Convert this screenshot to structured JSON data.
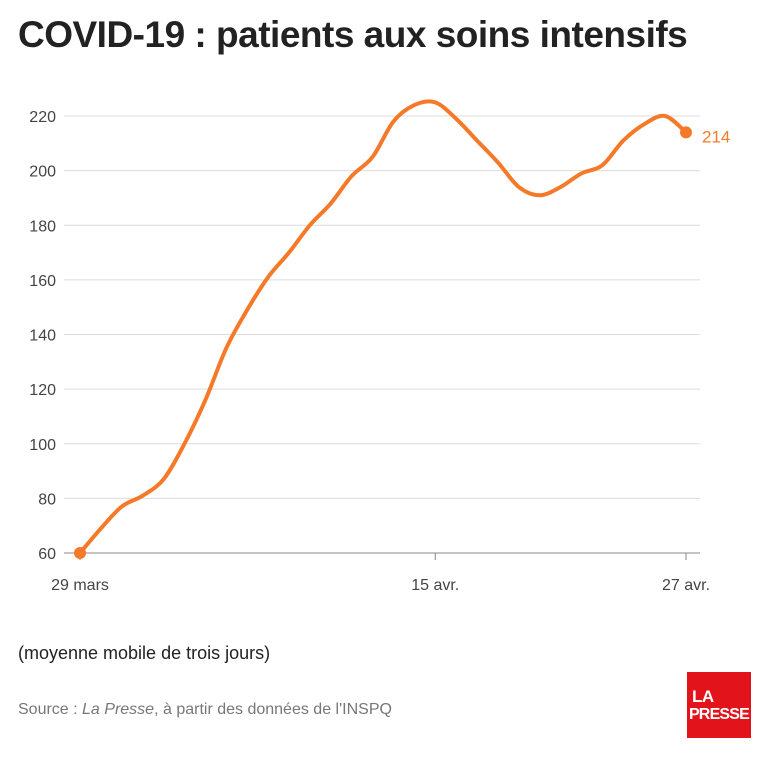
{
  "title": "COVID-19 : patients aux soins intensifs",
  "note": "(moyenne mobile de trois jours)",
  "source": {
    "prefix": "Source : ",
    "publication": "La Presse",
    "suffix": ", à partir des données de l'INSPQ"
  },
  "logo": {
    "line1": "LA",
    "line2": "PRESSE",
    "color": "#e3131b"
  },
  "chart_data": {
    "type": "line",
    "title": "COVID-19 : patients aux soins intensifs",
    "xlabel": "",
    "ylabel": "",
    "ylim": [
      60,
      225
    ],
    "yticks": [
      60,
      80,
      100,
      120,
      140,
      160,
      180,
      200,
      220
    ],
    "xtick_labels": [
      {
        "label": "29 mars",
        "day": 0
      },
      {
        "label": "15 avr.",
        "day": 17
      },
      {
        "label": "27 avr.",
        "day": 29
      }
    ],
    "grid": true,
    "color": "#f47a2a",
    "end_label": "214",
    "series": [
      {
        "values": [
          60,
          69,
          77,
          81,
          87,
          100,
          116,
          135,
          149,
          161,
          170,
          180,
          188,
          198,
          205,
          218,
          224,
          225,
          219,
          211,
          203,
          194,
          191,
          194,
          199,
          202,
          211,
          217,
          220,
          214
        ]
      }
    ]
  }
}
